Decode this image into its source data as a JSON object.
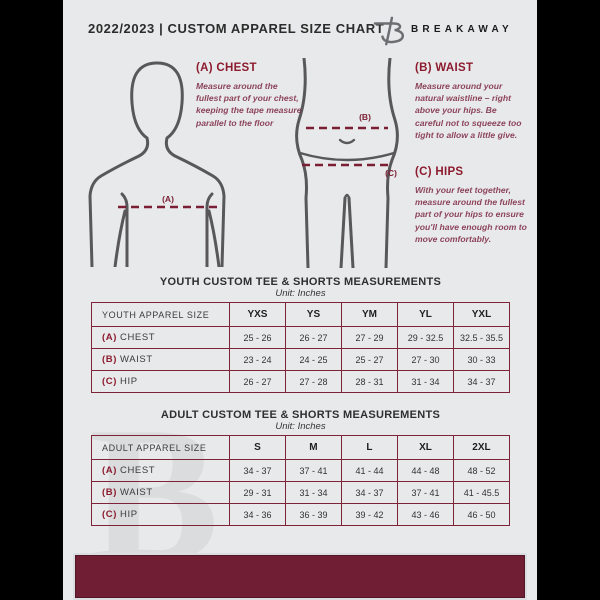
{
  "header": {
    "title": "2022/2023  |  CUSTOM APPAREL SIZE CHART",
    "brand": "BREAKAWAY",
    "logo_icon": "breakaway-b-logo"
  },
  "guide": {
    "chest": {
      "heading": "(A) CHEST",
      "marker": "(A)",
      "body": "Measure around the fullest part of your chest, keeping the tape measure parallel to the floor"
    },
    "waist": {
      "heading": "(B) WAIST",
      "marker": "(B)",
      "body": "Measure around your natural waistline – right above your hips. Be careful not to squeeze too tight to allow a little give."
    },
    "hips": {
      "heading": "(C) HIPS",
      "marker": "(C)",
      "body": "With your feet together, measure around the fullest part of your hips to ensure you'll have enough room to move comfortably."
    }
  },
  "tables": [
    {
      "title": "YOUTH CUSTOM TEE & SHORTS MEASUREMENTS",
      "unit": "Unit: Inches",
      "size_label": "YOUTH APPAREL SIZE",
      "columns": [
        "YXS",
        "YS",
        "YM",
        "YL",
        "YXL"
      ],
      "rows": [
        {
          "key": "(A)",
          "label": "CHEST",
          "values": [
            "25 - 26",
            "26 - 27",
            "27 - 29",
            "29 - 32.5",
            "32.5 - 35.5"
          ]
        },
        {
          "key": "(B)",
          "label": "WAIST",
          "values": [
            "23 - 24",
            "24 - 25",
            "25 - 27",
            "27 - 30",
            "30 - 33"
          ]
        },
        {
          "key": "(C)",
          "label": "HIP",
          "values": [
            "26 - 27",
            "27 - 28",
            "28 - 31",
            "31 - 34",
            "34 - 37"
          ]
        }
      ]
    },
    {
      "title": "ADULT CUSTOM TEE & SHORTS MEASUREMENTS",
      "unit": "Unit: Inches",
      "size_label": "ADULT APPAREL SIZE",
      "columns": [
        "S",
        "M",
        "L",
        "XL",
        "2XL"
      ],
      "rows": [
        {
          "key": "(A)",
          "label": "CHEST",
          "values": [
            "34 - 37",
            "37 - 41",
            "41 - 44",
            "44 - 48",
            "48 - 52"
          ]
        },
        {
          "key": "(B)",
          "label": "WAIST",
          "values": [
            "29 - 31",
            "31 - 34",
            "34 - 37",
            "37 - 41",
            "41 - 45.5"
          ]
        },
        {
          "key": "(C)",
          "label": "HIP",
          "values": [
            "34 - 36",
            "36 - 39",
            "39 - 42",
            "43 - 46",
            "46 - 50"
          ]
        }
      ]
    }
  ],
  "watermark_letter": "B",
  "colors": {
    "maroon_footer": "#701e34",
    "heading_red": "#8c1b2e",
    "table_border": "#7e2438",
    "background": "#e8e9ea",
    "side_bars": "#000000",
    "figure_stroke": "#58585b"
  }
}
